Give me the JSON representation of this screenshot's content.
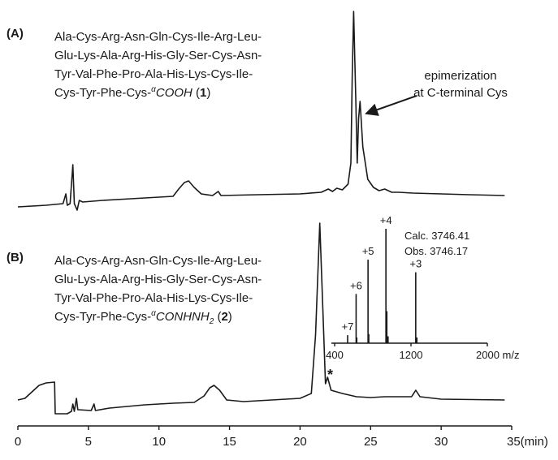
{
  "chart_data": [
    {
      "type": "line",
      "label": "(A)",
      "sequence": [
        "Ala-Cys-Arg-Asn-Gln-Cys-Ile-Arg-Leu-",
        "Glu-Lys-Ala-Arg-His-Gly-Ser-Cys-Asn-",
        "Tyr-Val-Phe-Pro-Ala-His-Lys-Cys-Ile-"
      ],
      "terminus": [
        "Cys-Tyr-Phe-Cys-",
        "α",
        "COOH",
        " (",
        "1",
        ")"
      ],
      "annotation": [
        "epimerization",
        "at C-terminal Cys"
      ],
      "color": "#1a1a1a",
      "ylim": [
        -30,
        240
      ],
      "x": [
        0,
        2.0,
        3.2,
        3.4,
        3.5,
        3.7,
        3.9,
        4.0,
        4.2,
        4.35,
        4.6,
        6,
        8,
        10,
        11,
        11.4,
        11.8,
        12.1,
        12.5,
        13,
        13.8,
        14.2,
        14.4,
        17,
        20,
        21.5,
        22,
        22.3,
        22.6,
        23,
        23.4,
        23.6,
        23.7,
        23.8,
        23.95,
        24.05,
        24.15,
        24.25,
        24.45,
        24.8,
        25.2,
        25.6,
        26,
        26.5,
        27,
        28,
        30,
        32,
        34.5
      ],
      "values": [
        -14,
        -12,
        -10,
        2,
        -12,
        -10,
        38,
        -10,
        -18,
        -6,
        -8,
        -6,
        -4,
        -2,
        -1,
        8,
        16,
        18,
        10,
        2,
        0,
        5,
        0,
        1,
        2,
        4,
        8,
        5,
        9,
        7,
        14,
        40,
        150,
        227,
        120,
        40,
        95,
        116,
        60,
        20,
        10,
        6,
        8,
        4,
        4,
        3,
        2,
        1,
        0
      ]
    },
    {
      "type": "line",
      "label": "(B)",
      "sequence": [
        "Ala-Cys-Arg-Asn-Gln-Cys-Ile-Arg-Leu-",
        "Glu-Lys-Ala-Arg-His-Gly-Ser-Cys-Asn-",
        "Tyr-Val-Phe-Pro-Ala-His-Lys-Cys-Ile-"
      ],
      "terminus": [
        "Cys-Tyr-Phe-Cys-",
        "α",
        "CONHNH",
        "2",
        " (",
        "2",
        ")"
      ],
      "annotation": "*",
      "color": "#1a1a1a",
      "ylim": [
        -30,
        240
      ],
      "xlim": [
        0,
        35
      ],
      "xticks": [
        0,
        5,
        10,
        15,
        20,
        25,
        30,
        {
          "value": 35,
          "label": "35(min)"
        }
      ],
      "x": [
        0,
        0.5,
        1.0,
        1.5,
        2.0,
        2.6,
        2.65,
        3.5,
        3.8,
        3.9,
        4.0,
        4.15,
        4.25,
        5.2,
        5.4,
        5.5,
        6.5,
        9,
        11,
        12.5,
        13.2,
        13.6,
        13.9,
        14.3,
        14.8,
        16,
        18,
        20,
        20.8,
        21.1,
        21.4,
        21.6,
        21.8,
        21.95,
        22.2,
        23,
        24,
        25,
        26,
        27.9,
        28.2,
        28.5,
        30,
        34.5
      ],
      "values": [
        0,
        2,
        10,
        18,
        21,
        22,
        -17,
        -17,
        -14,
        -5,
        -14,
        2,
        -12,
        -13,
        -5,
        -13,
        -10,
        -6,
        -4,
        -3,
        5,
        15,
        18,
        12,
        0,
        -2,
        0,
        2,
        8,
        80,
        218,
        120,
        20,
        28,
        12,
        8,
        4,
        3,
        4,
        4,
        12,
        4,
        1,
        0
      ]
    },
    {
      "type": "spectrum",
      "text": [
        "Calc. 3746.41",
        "Obs. 3746.17"
      ],
      "color": "#1a1a1a",
      "xlim": [
        400,
        2000
      ],
      "xticks": [
        400,
        1200,
        {
          "value": 2000,
          "label": "2000 m/z"
        }
      ],
      "ylim": [
        0,
        100
      ],
      "x": [
        536,
        625,
        632,
        750,
        758,
        937.5,
        947,
        960,
        1249.7,
        1262
      ],
      "values": [
        7,
        43,
        5,
        73,
        8,
        100,
        28,
        6,
        62,
        5
      ],
      "peak_labels": [
        "+7",
        "+6",
        null,
        "+5",
        null,
        "+4",
        null,
        null,
        "+3",
        null
      ]
    }
  ]
}
